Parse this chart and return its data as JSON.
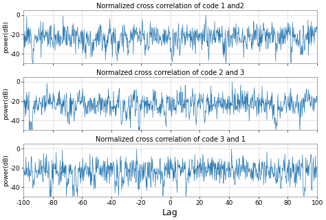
{
  "titles": [
    "Normalized cross correlation of code 1 and2",
    "Normalzed cross correlation of code 2 and 3",
    "Normalized cross correlation of code 3 and 1"
  ],
  "xlabel": "Lag",
  "ylabel": "power(dB)",
  "xlim": [
    -100,
    100
  ],
  "ylim": [
    -50,
    5
  ],
  "yticks": [
    0,
    -20,
    -40
  ],
  "xticks": [
    -100,
    -80,
    -60,
    -40,
    -20,
    0,
    20,
    40,
    60,
    80,
    100
  ],
  "line_color": "#2878b4",
  "bg_color": "#ffffff",
  "n_points": 800
}
